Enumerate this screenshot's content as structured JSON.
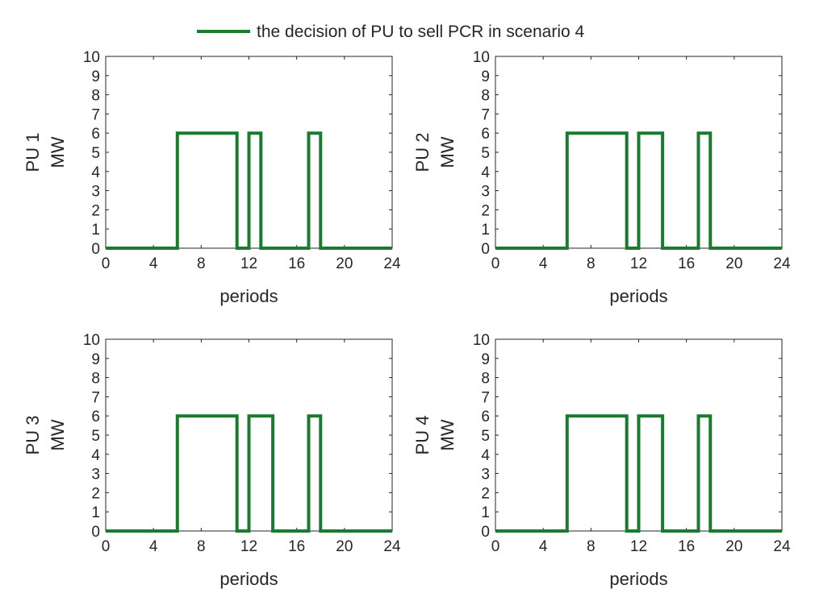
{
  "legend": {
    "label": "the decision of PU to sell PCR in scenario 4",
    "color": "#1a7a30"
  },
  "chart_data": [
    {
      "type": "line",
      "step": "post",
      "ylabel_line1": "PU 1",
      "ylabel_line2": "MW",
      "xlabel": "periods",
      "xlim": [
        0,
        24
      ],
      "ylim": [
        0,
        10
      ],
      "xticks": [
        0,
        4,
        8,
        12,
        16,
        20,
        24
      ],
      "yticks": [
        0,
        1,
        2,
        3,
        4,
        5,
        6,
        7,
        8,
        9,
        10
      ],
      "series": [
        {
          "name": "the decision of PU to sell PCR in scenario 4",
          "x": [
            0,
            6,
            6,
            11,
            11,
            12,
            12,
            13,
            13,
            17,
            17,
            18,
            18,
            24
          ],
          "y": [
            0,
            0,
            6,
            6,
            0,
            0,
            6,
            6,
            0,
            0,
            6,
            6,
            0,
            0
          ]
        }
      ]
    },
    {
      "type": "line",
      "step": "post",
      "ylabel_line1": "PU 2",
      "ylabel_line2": "MW",
      "xlabel": "periods",
      "xlim": [
        0,
        24
      ],
      "ylim": [
        0,
        10
      ],
      "xticks": [
        0,
        4,
        8,
        12,
        16,
        20,
        24
      ],
      "yticks": [
        0,
        1,
        2,
        3,
        4,
        5,
        6,
        7,
        8,
        9,
        10
      ],
      "series": [
        {
          "name": "the decision of PU to sell PCR in scenario 4",
          "x": [
            0,
            6,
            6,
            11,
            11,
            12,
            12,
            14,
            14,
            17,
            17,
            18,
            18,
            24
          ],
          "y": [
            0,
            0,
            6,
            6,
            0,
            0,
            6,
            6,
            0,
            0,
            6,
            6,
            0,
            0
          ]
        }
      ]
    },
    {
      "type": "line",
      "step": "post",
      "ylabel_line1": "PU 3",
      "ylabel_line2": "MW",
      "xlabel": "periods",
      "xlim": [
        0,
        24
      ],
      "ylim": [
        0,
        10
      ],
      "xticks": [
        0,
        4,
        8,
        12,
        16,
        20,
        24
      ],
      "yticks": [
        0,
        1,
        2,
        3,
        4,
        5,
        6,
        7,
        8,
        9,
        10
      ],
      "series": [
        {
          "name": "the decision of PU to sell PCR in scenario 4",
          "x": [
            0,
            6,
            6,
            11,
            11,
            12,
            12,
            14,
            14,
            17,
            17,
            18,
            18,
            24
          ],
          "y": [
            0,
            0,
            6,
            6,
            0,
            0,
            6,
            6,
            0,
            0,
            6,
            6,
            0,
            0
          ]
        }
      ]
    },
    {
      "type": "line",
      "step": "post",
      "ylabel_line1": "PU 4",
      "ylabel_line2": "MW",
      "xlabel": "periods",
      "xlim": [
        0,
        24
      ],
      "ylim": [
        0,
        10
      ],
      "xticks": [
        0,
        4,
        8,
        12,
        16,
        20,
        24
      ],
      "yticks": [
        0,
        1,
        2,
        3,
        4,
        5,
        6,
        7,
        8,
        9,
        10
      ],
      "series": [
        {
          "name": "the decision of PU to sell PCR in scenario 4",
          "x": [
            0,
            6,
            6,
            11,
            11,
            12,
            12,
            14,
            14,
            17,
            17,
            18,
            18,
            24
          ],
          "y": [
            0,
            0,
            6,
            6,
            0,
            0,
            6,
            6,
            0,
            0,
            6,
            6,
            0,
            0
          ]
        }
      ]
    }
  ]
}
